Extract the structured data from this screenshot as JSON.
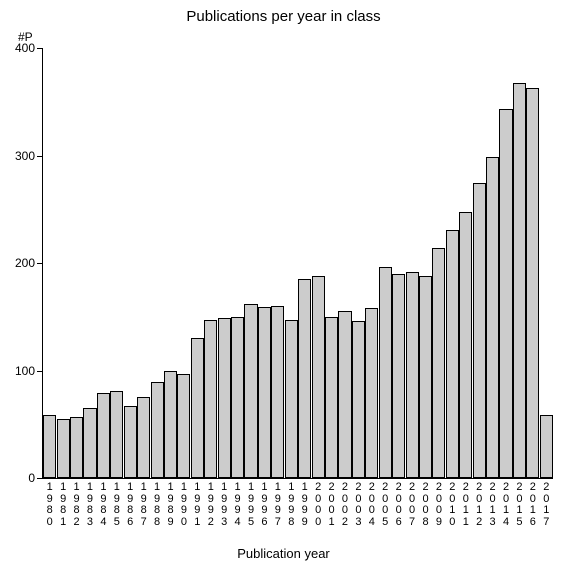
{
  "chart": {
    "type": "bar",
    "title": "Publications per year in class",
    "title_fontsize": 15,
    "y_axis_label": "#P",
    "x_axis_title": "Publication year",
    "ylim": [
      0,
      400
    ],
    "ytick_step": 100,
    "yticks": [
      0,
      100,
      200,
      300,
      400
    ],
    "background_color": "#ffffff",
    "bar_fill": "#cccccc",
    "bar_border": "#000000",
    "axis_color": "#000000",
    "label_fontsize": 12,
    "tick_fontsize": 11,
    "bar_width_ratio": 0.98,
    "categories": [
      "1980",
      "1981",
      "1982",
      "1983",
      "1984",
      "1985",
      "1986",
      "1987",
      "1988",
      "1989",
      "1990",
      "1991",
      "1992",
      "1993",
      "1994",
      "1995",
      "1996",
      "1997",
      "1998",
      "1999",
      "2000",
      "2001",
      "2002",
      "2003",
      "2004",
      "2005",
      "2006",
      "2007",
      "2008",
      "2009",
      "2010",
      "2011",
      "2012",
      "2013",
      "2014",
      "2015",
      "2016",
      "2017"
    ],
    "values": [
      59,
      55,
      57,
      65,
      79,
      81,
      67,
      75,
      89,
      100,
      97,
      130,
      147,
      149,
      150,
      162,
      159,
      160,
      147,
      185,
      188,
      150,
      155,
      146,
      158,
      196,
      190,
      192,
      188,
      214,
      231,
      247,
      274,
      299,
      343,
      367,
      363,
      59
    ]
  }
}
